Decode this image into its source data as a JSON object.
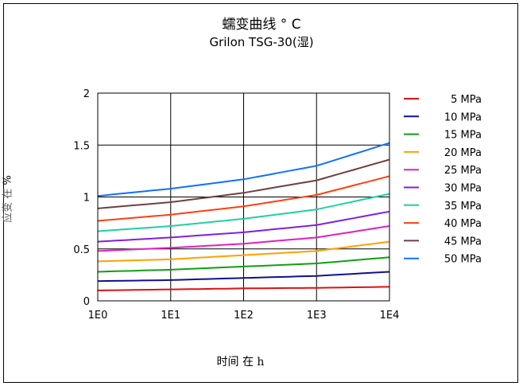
{
  "chart_data": {
    "type": "line",
    "title": "蠕变曲线 ° C",
    "subtitle": "Grilon TSG-30(湿)",
    "xlabel": "时间 在 h",
    "ylabel": "应变 在",
    "ylabel_unit": "%",
    "x_ticks": [
      "1E0",
      "1E1",
      "1E2",
      "1E3",
      "1E4"
    ],
    "x_scale": "log",
    "xlim": [
      1,
      10000
    ],
    "y_ticks": [
      "0",
      "0.5",
      "1",
      "1.5",
      "2"
    ],
    "ylim": [
      0,
      2
    ],
    "grid": true,
    "legend_position": "right",
    "x": [
      1,
      10,
      100,
      1000,
      10000
    ],
    "series": [
      {
        "name": "5 MPa",
        "color": "#e01010",
        "values": [
          0.1,
          0.11,
          0.12,
          0.125,
          0.135
        ]
      },
      {
        "name": "10 MPa",
        "color": "#101090",
        "values": [
          0.19,
          0.2,
          0.22,
          0.24,
          0.28
        ]
      },
      {
        "name": "15 MPa",
        "color": "#10a010",
        "values": [
          0.28,
          0.3,
          0.33,
          0.36,
          0.42
        ]
      },
      {
        "name": "20 MPa",
        "color": "#ffa000",
        "values": [
          0.38,
          0.4,
          0.44,
          0.48,
          0.57
        ]
      },
      {
        "name": "25 MPa",
        "color": "#e020c0",
        "values": [
          0.48,
          0.51,
          0.55,
          0.61,
          0.72
        ]
      },
      {
        "name": "30 MPa",
        "color": "#8020e0",
        "values": [
          0.57,
          0.61,
          0.66,
          0.73,
          0.86
        ]
      },
      {
        "name": "35 MPa",
        "color": "#20d0a0",
        "values": [
          0.67,
          0.72,
          0.79,
          0.88,
          1.03
        ]
      },
      {
        "name": "40 MPa",
        "color": "#ff4010",
        "values": [
          0.77,
          0.83,
          0.91,
          1.02,
          1.2
        ]
      },
      {
        "name": "45 MPa",
        "color": "#704040",
        "values": [
          0.89,
          0.95,
          1.04,
          1.16,
          1.36
        ]
      },
      {
        "name": "50 MPa",
        "color": "#1070ff",
        "values": [
          1.01,
          1.08,
          1.17,
          1.3,
          1.52
        ]
      }
    ]
  }
}
